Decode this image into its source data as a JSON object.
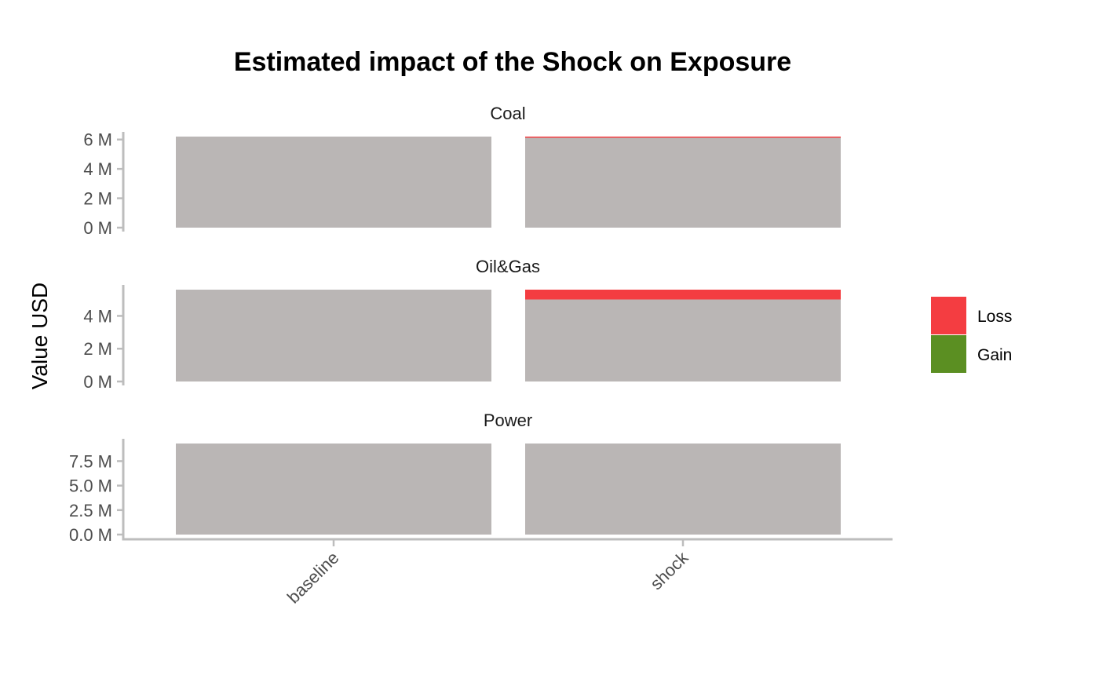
{
  "chart_data": {
    "type": "bar",
    "title": "Estimated impact of the Shock on Exposure",
    "ylabel": "Value USD",
    "xlabel": "",
    "categories": [
      "baseline",
      "shock"
    ],
    "legend": {
      "position": "right",
      "entries": [
        {
          "name": "Loss",
          "color": "#f43d41"
        },
        {
          "name": "Gain",
          "color": "#5b8f22"
        }
      ]
    },
    "colors": {
      "exposure": "#bab6b5",
      "loss": "#f43d41",
      "gain": "#5b8f22"
    },
    "grid": false,
    "facets": [
      {
        "name": "Coal",
        "ylim": [
          0,
          6200000
        ],
        "yticks": [
          0,
          2000000,
          4000000,
          6000000
        ],
        "ytick_labels": [
          "0 M",
          "2 M",
          "4 M",
          "6 M"
        ],
        "base": [
          6200000,
          6150000
        ],
        "loss": [
          0,
          50000
        ],
        "gain": [
          0,
          0
        ]
      },
      {
        "name": "Oil&Gas",
        "ylim": [
          0,
          5600000
        ],
        "yticks": [
          0,
          2000000,
          4000000
        ],
        "ytick_labels": [
          "0 M",
          "2 M",
          "4 M"
        ],
        "base": [
          5600000,
          5000000
        ],
        "loss": [
          0,
          600000
        ],
        "gain": [
          0,
          0
        ]
      },
      {
        "name": "Power",
        "ylim": [
          0,
          9300000
        ],
        "yticks": [
          0,
          2500000,
          5000000,
          7500000
        ],
        "ytick_labels": [
          "0.0 M",
          "2.5 M",
          "5.0 M",
          "7.5 M"
        ],
        "base": [
          9300000,
          9300000
        ],
        "loss": [
          0,
          0
        ],
        "gain": [
          0,
          0
        ]
      }
    ]
  }
}
